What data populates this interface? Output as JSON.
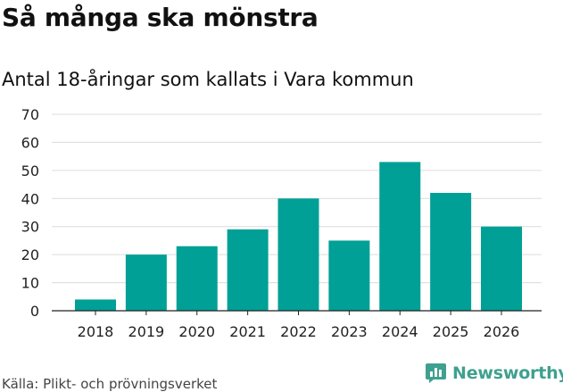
{
  "title": "Så många ska mönstra",
  "chart_data": {
    "type": "bar",
    "title": "Så många ska mönstra",
    "subtitle": "Antal 18-åringar som kallats i Vara kommun",
    "xlabel": "",
    "ylabel": "",
    "categories": [
      "2018",
      "2019",
      "2020",
      "2021",
      "2022",
      "2023",
      "2024",
      "2025",
      "2026"
    ],
    "values": [
      4,
      20,
      23,
      29,
      40,
      25,
      53,
      42,
      30
    ],
    "ylim": [
      0,
      70
    ],
    "yticks": [
      0,
      10,
      20,
      30,
      40,
      50,
      60,
      70
    ],
    "ytick_labels": [
      "0",
      "10",
      "20",
      "30",
      "40",
      "50",
      "60",
      "70"
    ],
    "grid": true,
    "bar_color": "#00a096"
  },
  "source": "Källa: Plikt- och prövningsverket",
  "brand": {
    "name": "Newsworthy",
    "icon": "newsworthy-chart-bubble-icon",
    "color": "#3fa08f"
  }
}
